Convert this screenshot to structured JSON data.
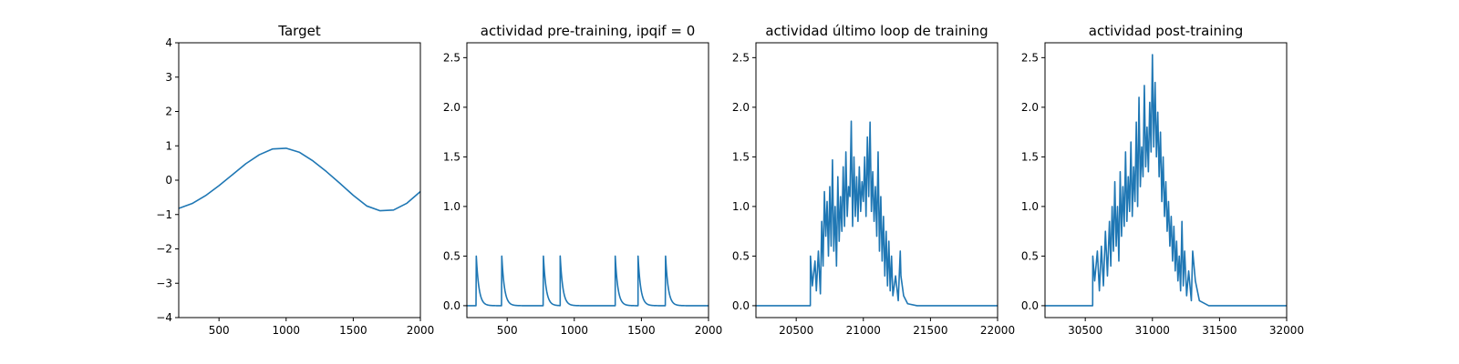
{
  "colors": {
    "series": "#1f77b4",
    "axes": "#000000",
    "background": "#ffffff"
  },
  "chart_data": [
    {
      "type": "line",
      "title": "Target",
      "xlabel": "",
      "ylabel": "",
      "xlim": [
        200,
        2000
      ],
      "ylim": [
        -4,
        4
      ],
      "xticks": [
        500,
        1000,
        1500,
        2000
      ],
      "xtick_labels": [
        "500",
        "1000",
        "1500",
        "2000"
      ],
      "yticks": [
        -4,
        -3,
        -2,
        -1,
        0,
        1,
        2,
        3,
        4
      ],
      "ytick_labels": [
        "−4",
        "−3",
        "−2",
        "−1",
        "0",
        "1",
        "2",
        "3",
        "4"
      ],
      "grid": false,
      "series": [
        {
          "x": [
            200,
            300,
            400,
            500,
            600,
            700,
            800,
            900,
            1000,
            1100,
            1200,
            1300,
            1400,
            1500,
            1600,
            1700,
            1800,
            1900,
            2000
          ],
          "y": [
            -0.82,
            -0.68,
            -0.45,
            -0.16,
            0.16,
            0.48,
            0.74,
            0.91,
            0.93,
            0.81,
            0.56,
            0.25,
            -0.09,
            -0.44,
            -0.75,
            -0.89,
            -0.87,
            -0.67,
            -0.33
          ]
        }
      ]
    },
    {
      "type": "line",
      "title": "actividad pre-training, ipqif = 0",
      "xlabel": "",
      "ylabel": "",
      "xlim": [
        200,
        2000
      ],
      "ylim": [
        -0.12,
        2.65
      ],
      "xticks": [
        500,
        1000,
        1500,
        2000
      ],
      "xtick_labels": [
        "500",
        "1000",
        "1500",
        "2000"
      ],
      "yticks": [
        0,
        0.5,
        1,
        1.5,
        2,
        2.5
      ],
      "ytick_labels": [
        "0.0",
        "0.5",
        "1.0",
        "1.5",
        "2.0",
        "2.5"
      ],
      "grid": false,
      "series": [
        {
          "spike_times": [
            270,
            460,
            770,
            895,
            1305,
            1475,
            1680
          ],
          "spike_peak": 0.5,
          "decay": 20
        }
      ]
    },
    {
      "type": "line",
      "title": "actividad último loop de training",
      "xlabel": "",
      "ylabel": "",
      "xlim": [
        20200,
        22000
      ],
      "ylim": [
        -0.12,
        2.65
      ],
      "xticks": [
        20500,
        21000,
        21500,
        22000
      ],
      "xtick_labels": [
        "20500",
        "21000",
        "21500",
        "22000"
      ],
      "yticks": [
        0,
        0.5,
        1,
        1.5,
        2,
        2.5
      ],
      "ytick_labels": [
        "0.0",
        "0.5",
        "1.0",
        "1.5",
        "2.0",
        "2.5"
      ],
      "grid": false,
      "series": [
        {
          "x": [
            20200,
            20605,
            20606,
            20620,
            20640,
            20650,
            20665,
            20680,
            20690,
            20700,
            20710,
            20720,
            20730,
            20740,
            20750,
            20760,
            20770,
            20780,
            20790,
            20800,
            20810,
            20820,
            20830,
            20840,
            20850,
            20860,
            20870,
            20880,
            20890,
            20900,
            20910,
            20920,
            20930,
            20940,
            20950,
            20960,
            20970,
            20980,
            20990,
            21000,
            21010,
            21020,
            21030,
            21040,
            21050,
            21060,
            21070,
            21080,
            21090,
            21100,
            21110,
            21120,
            21130,
            21140,
            21150,
            21160,
            21170,
            21180,
            21190,
            21200,
            21210,
            21220,
            21240,
            21260,
            21275,
            21280,
            21300,
            21330,
            21400,
            22000
          ],
          "y": [
            0,
            0,
            0.5,
            0.2,
            0.45,
            0.15,
            0.55,
            0.12,
            0.85,
            0.4,
            1.15,
            0.7,
            1.05,
            0.5,
            1.2,
            0.6,
            1.47,
            0.55,
            1.0,
            0.4,
            1.3,
            0.65,
            1.1,
            0.75,
            1.4,
            0.8,
            1.55,
            0.9,
            1.2,
            1.1,
            1.86,
            0.8,
            1.5,
            0.9,
            1.3,
            0.85,
            1.4,
            0.95,
            1.25,
            1.05,
            1.5,
            0.9,
            1.7,
            1.1,
            1.85,
            0.95,
            1.35,
            0.85,
            1.2,
            0.7,
            1.55,
            0.55,
            1.1,
            0.45,
            0.9,
            0.3,
            0.75,
            0.2,
            0.65,
            0.15,
            0.5,
            0.1,
            0.3,
            0.05,
            0.55,
            0.3,
            0.1,
            0.02,
            0,
            0
          ]
        }
      ]
    },
    {
      "type": "line",
      "title": "actividad post-training",
      "xlabel": "",
      "ylabel": "",
      "xlim": [
        30200,
        32000
      ],
      "ylim": [
        -0.12,
        2.65
      ],
      "xticks": [
        30500,
        31000,
        31500,
        32000
      ],
      "xtick_labels": [
        "30500",
        "31000",
        "31500",
        "32000"
      ],
      "yticks": [
        0,
        0.5,
        1,
        1.5,
        2,
        2.5
      ],
      "ytick_labels": [
        "0.0",
        "0.5",
        "1.0",
        "1.5",
        "2.0",
        "2.5"
      ],
      "grid": false,
      "series": [
        {
          "x": [
            30200,
            30555,
            30556,
            30570,
            30590,
            30605,
            30620,
            30635,
            30650,
            30665,
            30680,
            30690,
            30700,
            30710,
            30720,
            30730,
            30740,
            30750,
            30760,
            30770,
            30780,
            30790,
            30800,
            30810,
            30820,
            30830,
            30840,
            30850,
            30860,
            30870,
            30880,
            30890,
            30900,
            30910,
            30920,
            30930,
            30940,
            30950,
            30960,
            30970,
            30980,
            30990,
            31000,
            31010,
            31020,
            31030,
            31040,
            31050,
            31060,
            31070,
            31080,
            31090,
            31100,
            31110,
            31120,
            31130,
            31140,
            31150,
            31160,
            31170,
            31180,
            31190,
            31200,
            31210,
            31220,
            31230,
            31240,
            31255,
            31270,
            31290,
            31300,
            31320,
            31350,
            31420,
            32000
          ],
          "y": [
            0,
            0,
            0.5,
            0.25,
            0.55,
            0.15,
            0.6,
            0.2,
            0.75,
            0.3,
            0.85,
            0.4,
            1.0,
            0.55,
            1.25,
            0.6,
            1.0,
            0.45,
            1.35,
            0.7,
            1.2,
            0.8,
            1.55,
            0.85,
            1.3,
            0.95,
            1.65,
            0.9,
            1.4,
            1.05,
            1.85,
            1.0,
            2.1,
            1.2,
            1.6,
            1.3,
            2.22,
            1.4,
            1.8,
            1.35,
            2.05,
            1.55,
            2.53,
            1.6,
            2.25,
            1.5,
            1.95,
            1.3,
            1.75,
            1.05,
            1.5,
            0.9,
            1.25,
            0.75,
            1.05,
            0.6,
            0.9,
            0.45,
            0.8,
            0.35,
            0.65,
            0.25,
            0.5,
            0.15,
            0.85,
            0.2,
            0.55,
            0.1,
            0.35,
            0.05,
            0.55,
            0.25,
            0.05,
            0,
            0
          ]
        }
      ]
    }
  ]
}
